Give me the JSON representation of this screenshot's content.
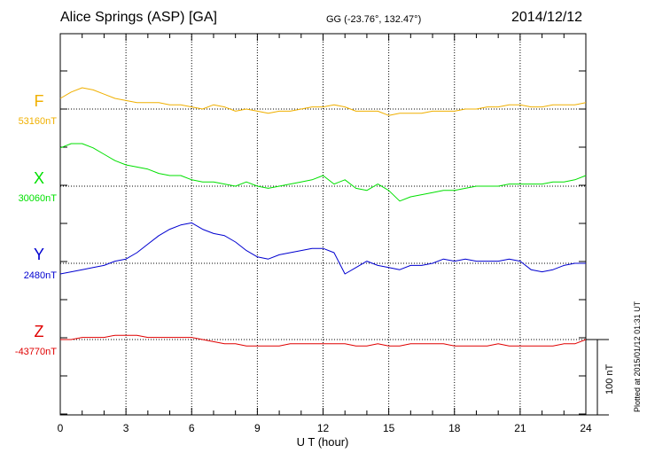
{
  "header": {
    "title": "Alice Springs (ASP)  [GA]",
    "coords": "GG (-23.76°, 132.47°)",
    "date": "2014/12/12"
  },
  "footer": {
    "plotted": "Plotted at 2015/01/12 01:31  UT"
  },
  "chart_data": {
    "type": "line",
    "title": "Alice Springs (ASP)  [GA]",
    "xlabel": "U T (hour)",
    "ylabel": "",
    "xlim": [
      0,
      24
    ],
    "x_ticks": [
      0,
      3,
      6,
      9,
      12,
      15,
      18,
      21,
      24
    ],
    "grid": true,
    "scale_bar": "100 nT",
    "series": [
      {
        "name": "F",
        "baseline": "53160nT",
        "color": "#f0b000",
        "points": [
          [
            0,
            5
          ],
          [
            0.5,
            8
          ],
          [
            1,
            10
          ],
          [
            1.5,
            9
          ],
          [
            2,
            7
          ],
          [
            2.5,
            5
          ],
          [
            3,
            4
          ],
          [
            3.5,
            3
          ],
          [
            4,
            3
          ],
          [
            4.5,
            3
          ],
          [
            5,
            2
          ],
          [
            5.5,
            2
          ],
          [
            6,
            1
          ],
          [
            6.5,
            0
          ],
          [
            7,
            2
          ],
          [
            7.5,
            1
          ],
          [
            8,
            -1
          ],
          [
            8.5,
            0
          ],
          [
            9,
            -1
          ],
          [
            9.5,
            -2
          ],
          [
            10,
            -1
          ],
          [
            10.5,
            -1
          ],
          [
            11,
            0
          ],
          [
            11.5,
            1
          ],
          [
            12,
            1
          ],
          [
            12.5,
            2
          ],
          [
            13,
            1
          ],
          [
            13.5,
            -1
          ],
          [
            14,
            -1
          ],
          [
            14.5,
            -1
          ],
          [
            15,
            -3
          ],
          [
            15.5,
            -2
          ],
          [
            16,
            -2
          ],
          [
            16.5,
            -2
          ],
          [
            17,
            -1
          ],
          [
            17.5,
            -1
          ],
          [
            18,
            -1
          ],
          [
            18.5,
            0
          ],
          [
            19,
            0
          ],
          [
            19.5,
            1
          ],
          [
            20,
            1
          ],
          [
            20.5,
            2
          ],
          [
            21,
            2
          ],
          [
            21.5,
            1
          ],
          [
            22,
            1
          ],
          [
            22.5,
            2
          ],
          [
            23,
            2
          ],
          [
            23.5,
            2
          ],
          [
            24,
            3
          ]
        ]
      },
      {
        "name": "X",
        "baseline": "30060nT",
        "color": "#00e000",
        "points": [
          [
            0,
            18
          ],
          [
            0.5,
            20
          ],
          [
            1,
            20
          ],
          [
            1.5,
            18
          ],
          [
            2,
            15
          ],
          [
            2.5,
            12
          ],
          [
            3,
            10
          ],
          [
            3.5,
            9
          ],
          [
            4,
            8
          ],
          [
            4.5,
            6
          ],
          [
            5,
            5
          ],
          [
            5.5,
            5
          ],
          [
            6,
            3
          ],
          [
            6.5,
            2
          ],
          [
            7,
            2
          ],
          [
            7.5,
            1
          ],
          [
            8,
            0
          ],
          [
            8.5,
            2
          ],
          [
            9,
            0
          ],
          [
            9.5,
            -1
          ],
          [
            10,
            0
          ],
          [
            10.5,
            1
          ],
          [
            11,
            2
          ],
          [
            11.5,
            3
          ],
          [
            12,
            5
          ],
          [
            12.5,
            1
          ],
          [
            13,
            3
          ],
          [
            13.5,
            -1
          ],
          [
            14,
            -2
          ],
          [
            14.5,
            1
          ],
          [
            15,
            -2
          ],
          [
            15.5,
            -7
          ],
          [
            16,
            -5
          ],
          [
            16.5,
            -4
          ],
          [
            17,
            -3
          ],
          [
            17.5,
            -2
          ],
          [
            18,
            -2
          ],
          [
            18.5,
            -1
          ],
          [
            19,
            0
          ],
          [
            19.5,
            0
          ],
          [
            20,
            0
          ],
          [
            20.5,
            1
          ],
          [
            21,
            1
          ],
          [
            21.5,
            1
          ],
          [
            22,
            1
          ],
          [
            22.5,
            2
          ],
          [
            23,
            2
          ],
          [
            23.5,
            3
          ],
          [
            24,
            5
          ]
        ]
      },
      {
        "name": "Y",
        "baseline": "2480nT",
        "color": "#0000d0",
        "points": [
          [
            0,
            -5
          ],
          [
            0.5,
            -4
          ],
          [
            1,
            -3
          ],
          [
            1.5,
            -2
          ],
          [
            2,
            -1
          ],
          [
            2.5,
            1
          ],
          [
            3,
            2
          ],
          [
            3.5,
            5
          ],
          [
            4,
            9
          ],
          [
            4.5,
            13
          ],
          [
            5,
            16
          ],
          [
            5.5,
            18
          ],
          [
            6,
            19
          ],
          [
            6.5,
            16
          ],
          [
            7,
            14
          ],
          [
            7.5,
            13
          ],
          [
            8,
            10
          ],
          [
            8.5,
            6
          ],
          [
            9,
            3
          ],
          [
            9.5,
            2
          ],
          [
            10,
            4
          ],
          [
            10.5,
            5
          ],
          [
            11,
            6
          ],
          [
            11.5,
            7
          ],
          [
            12,
            7
          ],
          [
            12.5,
            5
          ],
          [
            13,
            -5
          ],
          [
            13.5,
            -2
          ],
          [
            14,
            1
          ],
          [
            14.5,
            -1
          ],
          [
            15,
            -2
          ],
          [
            15.5,
            -3
          ],
          [
            16,
            -1
          ],
          [
            16.5,
            -1
          ],
          [
            17,
            0
          ],
          [
            17.5,
            2
          ],
          [
            18,
            1
          ],
          [
            18.5,
            2
          ],
          [
            19,
            1
          ],
          [
            19.5,
            1
          ],
          [
            20,
            1
          ],
          [
            20.5,
            2
          ],
          [
            21,
            1
          ],
          [
            21.5,
            -3
          ],
          [
            22,
            -4
          ],
          [
            22.5,
            -3
          ],
          [
            23,
            -1
          ],
          [
            23.5,
            0
          ],
          [
            24,
            0
          ]
        ]
      },
      {
        "name": "Z",
        "baseline": "-43770nT",
        "color": "#e00000",
        "points": [
          [
            0,
            0
          ],
          [
            0.5,
            0
          ],
          [
            1,
            1
          ],
          [
            1.5,
            1
          ],
          [
            2,
            1
          ],
          [
            2.5,
            2
          ],
          [
            3,
            2
          ],
          [
            3.5,
            2
          ],
          [
            4,
            1
          ],
          [
            4.5,
            1
          ],
          [
            5,
            1
          ],
          [
            5.5,
            1
          ],
          [
            6,
            1
          ],
          [
            6.5,
            0
          ],
          [
            7,
            -1
          ],
          [
            7.5,
            -2
          ],
          [
            8,
            -2
          ],
          [
            8.5,
            -3
          ],
          [
            9,
            -3
          ],
          [
            9.5,
            -3
          ],
          [
            10,
            -3
          ],
          [
            10.5,
            -2
          ],
          [
            11,
            -2
          ],
          [
            11.5,
            -2
          ],
          [
            12,
            -2
          ],
          [
            12.5,
            -2
          ],
          [
            13,
            -2
          ],
          [
            13.5,
            -3
          ],
          [
            14,
            -3
          ],
          [
            14.5,
            -2
          ],
          [
            15,
            -3
          ],
          [
            15.5,
            -3
          ],
          [
            16,
            -2
          ],
          [
            16.5,
            -2
          ],
          [
            17,
            -2
          ],
          [
            17.5,
            -2
          ],
          [
            18,
            -3
          ],
          [
            18.5,
            -3
          ],
          [
            19,
            -3
          ],
          [
            19.5,
            -3
          ],
          [
            20,
            -2
          ],
          [
            20.5,
            -3
          ],
          [
            21,
            -3
          ],
          [
            21.5,
            -3
          ],
          [
            22,
            -3
          ],
          [
            22.5,
            -3
          ],
          [
            23,
            -2
          ],
          [
            23.5,
            -2
          ],
          [
            24,
            0
          ]
        ]
      }
    ]
  }
}
